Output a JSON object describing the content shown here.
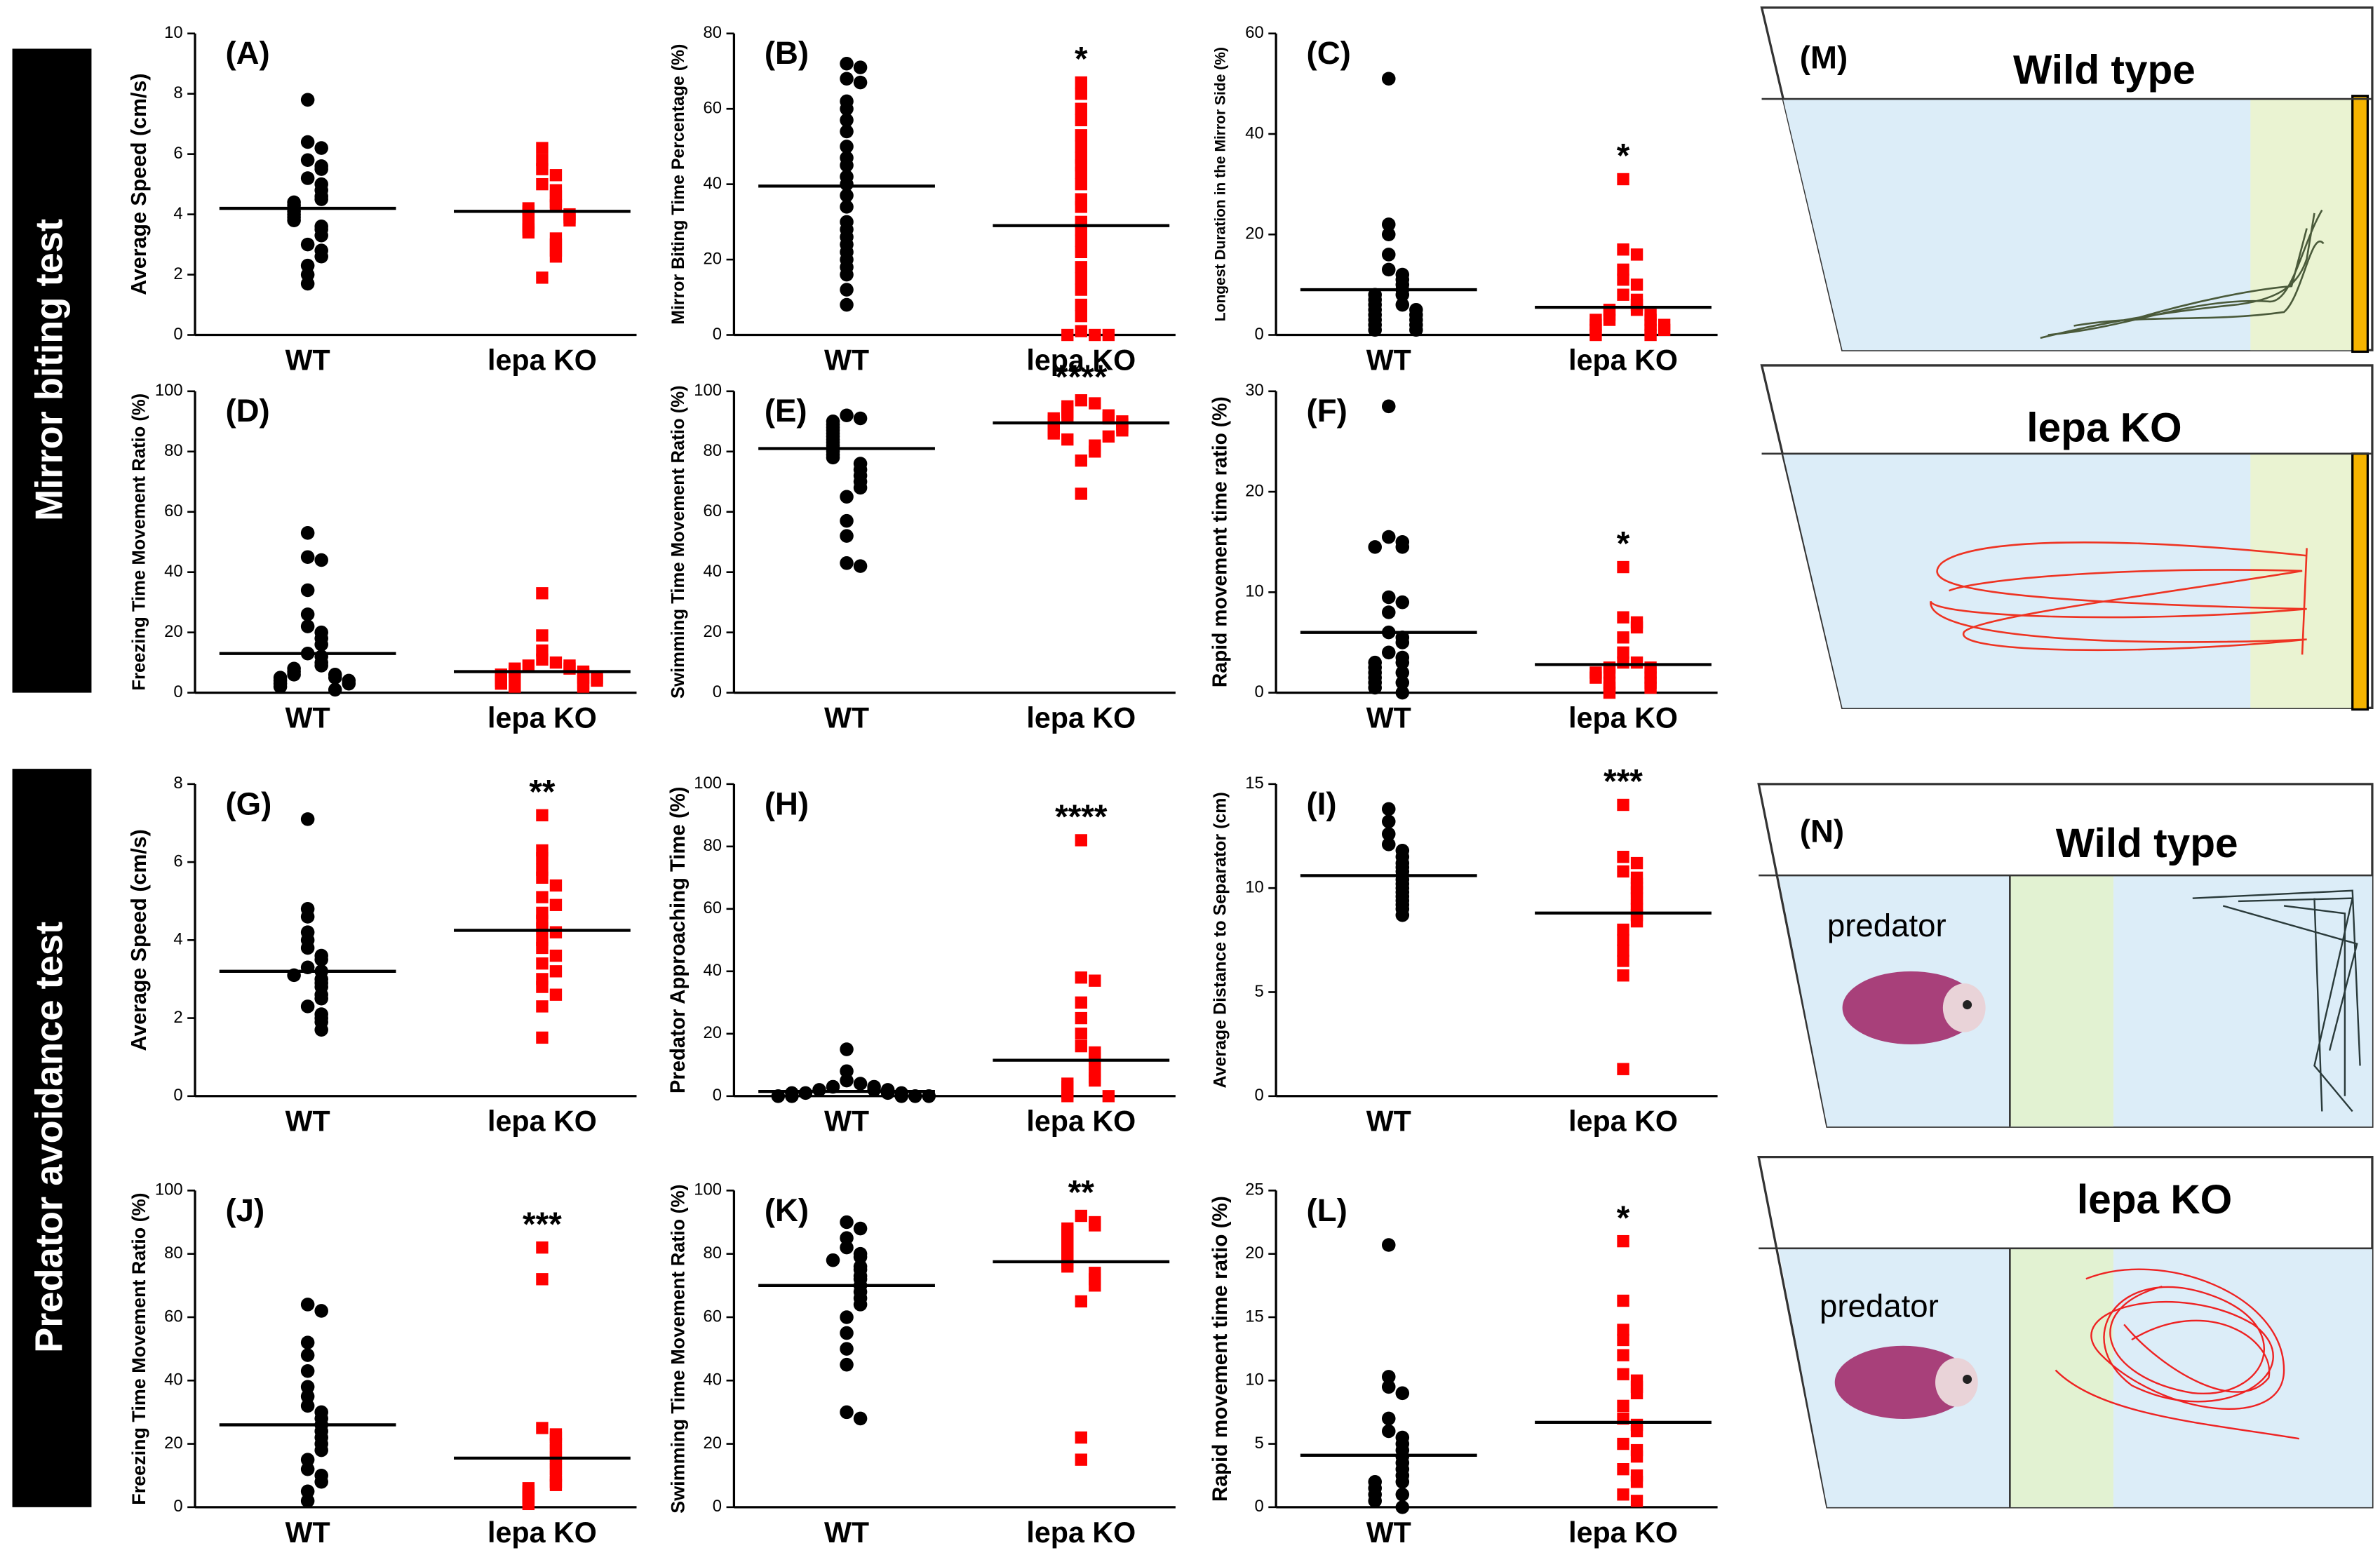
{
  "sections": [
    "Mirror biting test",
    "Predator avoidance test"
  ],
  "chart_data": [
    {
      "type": "strip",
      "title": "(A)",
      "y_label": "Average Speed (cm/s)",
      "categories": [
        "WT",
        "lepa KO"
      ],
      "ylim": [
        0,
        10
      ],
      "yticks": [
        0,
        2,
        4,
        6,
        8,
        10
      ],
      "annotation": null,
      "series": [
        {
          "name": "WT",
          "color": "#000000",
          "values": [
            7.8,
            6.4,
            6.2,
            5.8,
            5.6,
            5.5,
            5.2,
            5.0,
            4.8,
            4.6,
            4.5,
            4.4,
            4.3,
            4.2,
            4.1,
            4.0,
            3.9,
            3.8,
            3.6,
            3.5,
            3.3,
            3.0,
            2.8,
            2.6,
            2.3,
            2.0,
            1.7
          ],
          "mean": 4.2
        },
        {
          "name": "lepa KO",
          "color": "#ff0000",
          "values": [
            6.2,
            5.8,
            5.5,
            5.3,
            5.0,
            4.8,
            4.6,
            4.4,
            4.3,
            4.2,
            4.1,
            4.0,
            4.0,
            3.9,
            3.8,
            3.7,
            3.6,
            3.5,
            3.4,
            3.2,
            3.0,
            2.8,
            2.6,
            1.9
          ],
          "mean": 4.1
        }
      ]
    },
    {
      "type": "strip",
      "title": "(B)",
      "y_label": "Mirror Biting Time Percentage (%)",
      "categories": [
        "WT",
        "lepa KO"
      ],
      "ylim": [
        0,
        80
      ],
      "yticks": [
        0,
        20,
        40,
        60,
        80
      ],
      "annotation": "*",
      "series": [
        {
          "name": "WT",
          "color": "#000000",
          "values": [
            72,
            71,
            68,
            67,
            62,
            60,
            57,
            54,
            50,
            47,
            45,
            42,
            40,
            37,
            34,
            30,
            28,
            26,
            24,
            22,
            20,
            18,
            16,
            12,
            8
          ],
          "mean": 39.5
        },
        {
          "name": "lepa KO",
          "color": "#ff0000",
          "values": [
            67,
            64,
            60,
            57,
            53,
            50,
            47,
            45,
            43,
            40,
            36,
            34,
            30,
            28,
            25,
            22,
            18,
            15,
            12,
            8,
            5,
            1,
            0,
            0,
            0
          ],
          "mean": 29
        }
      ]
    },
    {
      "type": "strip",
      "title": "(C)",
      "y_label": "Longest Duration in the Mirror Side (%)",
      "categories": [
        "WT",
        "lepa KO"
      ],
      "ylim": [
        0,
        60
      ],
      "yticks": [
        0,
        20,
        40,
        60
      ],
      "annotation": "*",
      "series": [
        {
          "name": "WT",
          "color": "#000000",
          "values": [
            51,
            22,
            20,
            16,
            13,
            12,
            11,
            10,
            9,
            8,
            8,
            7,
            6,
            6,
            5,
            5,
            4,
            4,
            3,
            3,
            2,
            2,
            1,
            1
          ],
          "mean": 9
        },
        {
          "name": "lepa KO",
          "color": "#ff0000",
          "values": [
            31,
            17,
            16,
            13,
            11,
            10,
            8,
            7,
            6,
            5,
            5,
            4,
            4,
            3,
            3,
            3,
            2,
            2,
            2,
            1,
            1,
            1,
            0,
            0
          ],
          "mean": 5.5
        }
      ]
    },
    {
      "type": "strip",
      "title": "(D)",
      "y_label": "Freezing Time Movement Ratio (%)",
      "categories": [
        "WT",
        "lepa KO"
      ],
      "ylim": [
        0,
        100
      ],
      "yticks": [
        0,
        20,
        40,
        60,
        80,
        100
      ],
      "annotation": null,
      "series": [
        {
          "name": "WT",
          "color": "#000000",
          "values": [
            53,
            45,
            44,
            34,
            26,
            22,
            20,
            18,
            16,
            13,
            12,
            10,
            9,
            8,
            7,
            6,
            6,
            5,
            5,
            4,
            4,
            3,
            3,
            2,
            1
          ],
          "mean": 13
        },
        {
          "name": "lepa KO",
          "color": "#ff0000",
          "values": [
            33,
            19,
            14,
            11,
            10,
            9,
            9,
            8,
            8,
            7,
            7,
            6,
            6,
            6,
            5,
            5,
            5,
            4,
            4,
            3,
            3,
            2,
            2
          ],
          "mean": 7
        }
      ]
    },
    {
      "type": "strip",
      "title": "(E)",
      "y_label": "Swimming Time Movement Ratio (%)",
      "categories": [
        "WT",
        "lepa KO"
      ],
      "ylim": [
        0,
        100
      ],
      "yticks": [
        0,
        20,
        40,
        60,
        80,
        100
      ],
      "annotation": "****",
      "series": [
        {
          "name": "WT",
          "color": "#000000",
          "values": [
            92,
            91,
            90,
            89,
            88,
            87,
            86,
            85,
            84,
            83,
            82,
            81,
            80,
            79,
            78,
            76,
            74,
            72,
            70,
            68,
            65,
            57,
            52,
            43,
            42
          ],
          "mean": 81
        },
        {
          "name": "lepa KO",
          "color": "#ff0000",
          "values": [
            97,
            96,
            95,
            94,
            93,
            92,
            92,
            91,
            91,
            90,
            90,
            89,
            89,
            88,
            88,
            87,
            87,
            86,
            85,
            84,
            82,
            80,
            77,
            66
          ],
          "mean": 89.5
        }
      ]
    },
    {
      "type": "strip",
      "title": "(F)",
      "y_label": "Rapid movement time ratio (%)",
      "categories": [
        "WT",
        "lepa KO"
      ],
      "ylim": [
        0,
        30
      ],
      "yticks": [
        0,
        10,
        20,
        30
      ],
      "annotation": "*",
      "series": [
        {
          "name": "WT",
          "color": "#000000",
          "values": [
            28.5,
            15.5,
            15,
            14.5,
            14.5,
            9.5,
            9,
            8,
            6,
            5.5,
            5,
            4,
            3.5,
            3,
            3,
            2.5,
            2,
            2,
            1.5,
            1,
            1,
            0.5,
            0
          ],
          "mean": 6
        },
        {
          "name": "lepa KO",
          "color": "#ff0000",
          "values": [
            12.5,
            7.5,
            7,
            6.5,
            5.5,
            4,
            3,
            3,
            2.5,
            2.5,
            2,
            2,
            2,
            1.5,
            1.5,
            1,
            1,
            0.5,
            0.5,
            0
          ],
          "mean": 2.8
        }
      ]
    },
    {
      "type": "strip",
      "title": "(G)",
      "y_label": "Average Speed (cm/s)",
      "categories": [
        "WT",
        "lepa KO"
      ],
      "ylim": [
        0,
        8
      ],
      "yticks": [
        0,
        2,
        4,
        6,
        8
      ],
      "annotation": "**",
      "series": [
        {
          "name": "WT",
          "color": "#000000",
          "values": [
            7.1,
            4.8,
            4.6,
            4.2,
            4.0,
            3.8,
            3.6,
            3.5,
            3.3,
            3.2,
            3.1,
            3.0,
            2.9,
            2.8,
            2.6,
            2.5,
            2.3,
            2.1,
            2.0,
            1.9,
            1.7
          ],
          "mean": 3.2
        },
        {
          "name": "lepa KO",
          "color": "#ff0000",
          "values": [
            7.2,
            6.3,
            6.1,
            5.8,
            5.6,
            5.4,
            5.1,
            4.9,
            4.7,
            4.5,
            4.3,
            4.2,
            4.0,
            3.8,
            3.6,
            3.4,
            3.2,
            3.0,
            2.8,
            2.6,
            2.3,
            1.5
          ],
          "mean": 4.25
        }
      ]
    },
    {
      "type": "strip",
      "title": "(H)",
      "y_label": "Predator Approaching Time (%)",
      "categories": [
        "WT",
        "lepa KO"
      ],
      "ylim": [
        0,
        100
      ],
      "yticks": [
        0,
        20,
        40,
        60,
        80,
        100
      ],
      "annotation": "****",
      "series": [
        {
          "name": "WT",
          "color": "#000000",
          "values": [
            15,
            8,
            5,
            4,
            3,
            3,
            2,
            2,
            2,
            1,
            1,
            1,
            1,
            0,
            0,
            0,
            0,
            0
          ],
          "mean": 1.5
        },
        {
          "name": "lepa KO",
          "color": "#ff0000",
          "values": [
            82,
            38,
            37,
            30,
            25,
            20,
            16,
            14,
            12,
            10,
            8,
            6,
            5,
            4,
            3,
            2,
            1,
            0,
            0
          ],
          "mean": 11.5
        }
      ]
    },
    {
      "type": "strip",
      "title": "(I)",
      "y_label": "Average Distance to Separator (cm)",
      "categories": [
        "WT",
        "lepa KO"
      ],
      "ylim": [
        0,
        15
      ],
      "yticks": [
        0,
        5,
        10,
        15
      ],
      "annotation": "***",
      "series": [
        {
          "name": "WT",
          "color": "#000000",
          "values": [
            13.8,
            13.2,
            12.6,
            12.1,
            11.8,
            11.5,
            11.2,
            11.0,
            10.8,
            10.6,
            10.4,
            10.2,
            10.0,
            9.8,
            9.6,
            9.4,
            9.2,
            9.0,
            8.7
          ],
          "mean": 10.6
        },
        {
          "name": "lepa KO",
          "color": "#ff0000",
          "values": [
            14.0,
            11.5,
            11.2,
            10.8,
            10.5,
            10.2,
            10.0,
            9.8,
            9.5,
            9.2,
            9.0,
            8.7,
            8.4,
            8.0,
            7.5,
            7.0,
            6.5,
            5.8,
            1.3
          ],
          "mean": 8.8
        }
      ]
    },
    {
      "type": "strip",
      "title": "(J)",
      "y_label": "Freezing Time Movement Ratio (%)",
      "categories": [
        "WT",
        "lepa KO"
      ],
      "ylim": [
        0,
        100
      ],
      "yticks": [
        0,
        20,
        40,
        60,
        80,
        100
      ],
      "annotation": "***",
      "series": [
        {
          "name": "WT",
          "color": "#000000",
          "values": [
            64,
            62,
            52,
            48,
            43,
            38,
            35,
            32,
            30,
            28,
            26,
            24,
            22,
            20,
            18,
            15,
            12,
            10,
            8,
            5,
            2
          ],
          "mean": 26
        },
        {
          "name": "lepa KO",
          "color": "#ff0000",
          "values": [
            82,
            72,
            25,
            23,
            22,
            20,
            18,
            16,
            14,
            12,
            10,
            8,
            7,
            6,
            5,
            4,
            3,
            2,
            1
          ],
          "mean": 15.5
        }
      ]
    },
    {
      "type": "strip",
      "title": "(K)",
      "y_label": "Swimming Time Movement Ratio (%)",
      "categories": [
        "WT",
        "lepa KO"
      ],
      "ylim": [
        0,
        100
      ],
      "yticks": [
        0,
        20,
        40,
        60,
        80,
        100
      ],
      "annotation": "**",
      "series": [
        {
          "name": "WT",
          "color": "#000000",
          "values": [
            90,
            88,
            85,
            82,
            80,
            79,
            78,
            76,
            75,
            73,
            72,
            70,
            68,
            66,
            64,
            60,
            55,
            50,
            45,
            30,
            28
          ],
          "mean": 70
        },
        {
          "name": "lepa KO",
          "color": "#ff0000",
          "values": [
            92,
            90,
            89,
            88,
            87,
            86,
            85,
            84,
            83,
            82,
            81,
            80,
            79,
            78,
            77,
            76,
            74,
            72,
            70,
            65,
            22,
            15
          ],
          "mean": 77.5
        }
      ]
    },
    {
      "type": "strip",
      "title": "(L)",
      "y_label": "Rapid movement time ratio (%)",
      "categories": [
        "WT",
        "lepa KO"
      ],
      "ylim": [
        0,
        25
      ],
      "yticks": [
        0,
        5,
        10,
        15,
        20,
        25
      ],
      "annotation": "*",
      "series": [
        {
          "name": "WT",
          "color": "#000000",
          "values": [
            20.7,
            10.3,
            9.5,
            9,
            7,
            6,
            5.5,
            5,
            4.5,
            4,
            3.5,
            3,
            2.5,
            2,
            2,
            1.5,
            1,
            1,
            0.5,
            0
          ],
          "mean": 4.1
        },
        {
          "name": "lepa KO",
          "color": "#ff0000",
          "values": [
            21,
            16.3,
            14,
            13.2,
            12,
            10.5,
            10,
            9.5,
            9,
            8,
            7,
            6.5,
            6,
            5,
            4.5,
            4,
            3,
            2.5,
            2,
            1,
            0.5
          ],
          "mean": 6.7
        }
      ]
    }
  ],
  "diagrams": [
    {
      "label": "(M)",
      "panels": [
        {
          "title": "Wild type"
        },
        {
          "title": "lepa KO"
        }
      ]
    },
    {
      "label": "(N)",
      "panels": [
        {
          "title": "Wild type",
          "note": "predator"
        },
        {
          "title": "lepa KO",
          "note": "predator"
        }
      ]
    }
  ]
}
